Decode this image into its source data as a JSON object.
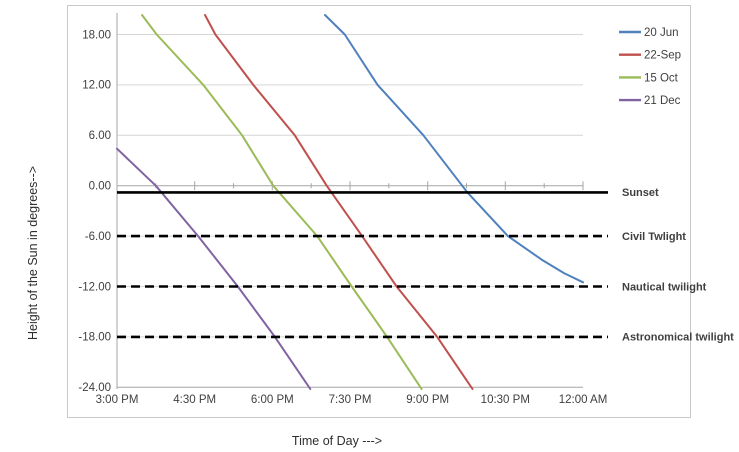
{
  "chart_data": {
    "type": "line",
    "title": "",
    "xlabel": "Time of Day --->",
    "ylabel": "Height of the Sun in degrees-->",
    "xlim": [
      900,
      1440
    ],
    "ylim": [
      -24.2,
      20.32
    ],
    "grid": "horizontal-only",
    "legend_position": "top-right-inside",
    "x_tick_labels": [
      "3:00 PM",
      "4:30 PM",
      "6:00 PM",
      "7:30 PM",
      "9:00 PM",
      "10:30 PM",
      "12:00 AM"
    ],
    "x_tick_minutes": [
      900,
      990,
      1080,
      1170,
      1260,
      1350,
      1440
    ],
    "x_minor_tick_minutes": [
      945,
      1035,
      1125,
      1215,
      1305,
      1395
    ],
    "y_ticks": [
      18,
      12,
      6,
      0,
      -6,
      -12,
      -18,
      -24
    ],
    "y_tick_labels": [
      "18.00",
      "12.00",
      "6.00",
      "0.00",
      "-6.00",
      "-12.00",
      "-18.00",
      "-24.00"
    ],
    "series": [
      {
        "name": "20 Jun",
        "color": "#4F81BD",
        "points": [
          [
            1141,
            20.32
          ],
          [
            1164,
            18
          ],
          [
            1202,
            12
          ],
          [
            1255,
            6
          ],
          [
            1300,
            0
          ],
          [
            1306,
            -0.8
          ],
          [
            1353,
            -6
          ],
          [
            1392,
            -8.8
          ],
          [
            1418,
            -10.4
          ],
          [
            1440,
            -11.5
          ]
        ]
      },
      {
        "name": "22-Sep",
        "color": "#C0504D",
        "points": [
          [
            1002,
            20.32
          ],
          [
            1014,
            18
          ],
          [
            1058,
            12
          ],
          [
            1106,
            6
          ],
          [
            1143,
            0
          ],
          [
            1184,
            -6
          ],
          [
            1224,
            -12
          ],
          [
            1271,
            -18
          ],
          [
            1312,
            -24.2
          ]
        ]
      },
      {
        "name": "15 Oct",
        "color": "#9BBB59",
        "points": [
          [
            929,
            20.32
          ],
          [
            946,
            18
          ],
          [
            1000,
            12
          ],
          [
            1045,
            6
          ],
          [
            1081,
            0
          ],
          [
            1132,
            -6
          ],
          [
            1172,
            -12
          ],
          [
            1213,
            -18
          ],
          [
            1253,
            -24.2
          ]
        ]
      },
      {
        "name": "21 Dec",
        "color": "#8064A2",
        "points": [
          [
            900,
            4.4
          ],
          [
            945,
            0
          ],
          [
            994,
            -6
          ],
          [
            1040,
            -12
          ],
          [
            1083,
            -18
          ],
          [
            1124,
            -24.2
          ]
        ]
      }
    ],
    "reference_lines": [
      {
        "label": "Sunset",
        "value": -0.8,
        "style": "solid"
      },
      {
        "label": "Civil Twlight",
        "value": -6,
        "style": "dashed"
      },
      {
        "label": "Nautical twilight",
        "value": -12,
        "style": "dashed"
      },
      {
        "label": "Astronomical twilight",
        "value": -18,
        "style": "dashed"
      }
    ],
    "style": {
      "annotation_color": "#FF0000",
      "reference_line_color": "#000000",
      "grid_color": "#D6D6D6",
      "axis_color": "#A6A6A6",
      "chart_border_color": "#C9C9C9",
      "tick_label_color": "#3F3F3F",
      "background": "#FFFFFF"
    }
  }
}
